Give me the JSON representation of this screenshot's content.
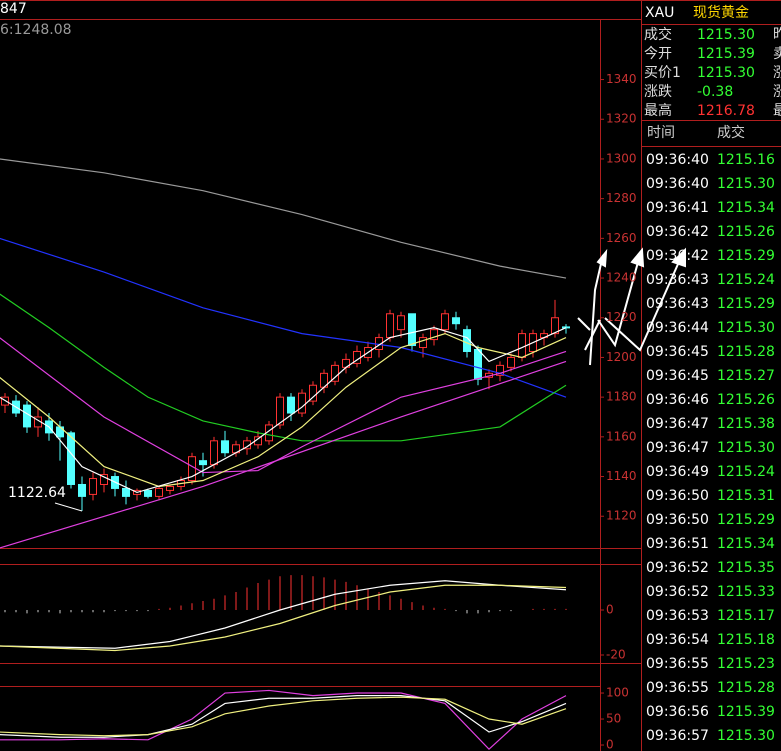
{
  "header": {
    "left_label": "847",
    "info": "6:1248.08"
  },
  "chart_data": [
    {
      "type": "candlestick",
      "ylim": [
        1104,
        1370
      ],
      "yticks": [
        1120,
        1140,
        1160,
        1180,
        1200,
        1220,
        1240,
        1260,
        1280,
        1300,
        1320,
        1340
      ],
      "up_color": "#ff3232",
      "down_color": "#54ffff",
      "low_label": "1122.64",
      "open": [
        1176,
        1178,
        1176,
        1165,
        1168,
        1165,
        1162,
        1136,
        1131,
        1136,
        1140,
        1134,
        1131,
        1133,
        1130,
        1133,
        1135,
        1138,
        1148,
        1146,
        1158,
        1152,
        1154,
        1156,
        1158,
        1166,
        1180,
        1172,
        1178,
        1185,
        1188,
        1195,
        1197,
        1200,
        1204,
        1210,
        1214,
        1222,
        1205,
        1209,
        1214,
        1220,
        1214,
        1204,
        1190,
        1191,
        1195,
        1200,
        1203,
        1210,
        1212,
        1215.39
      ],
      "high": [
        1182,
        1181,
        1178,
        1175,
        1172,
        1168,
        1163,
        1140,
        1142,
        1144,
        1142,
        1138,
        1134,
        1134,
        1135,
        1136,
        1140,
        1152,
        1152,
        1160,
        1163,
        1158,
        1160,
        1163,
        1168,
        1182,
        1182,
        1184,
        1188,
        1194,
        1198,
        1202,
        1206,
        1208,
        1212,
        1224,
        1223,
        1222,
        1212,
        1216,
        1224,
        1223,
        1216,
        1206,
        1194,
        1198,
        1202,
        1214,
        1214,
        1214,
        1229,
        1216.78
      ],
      "low": [
        1172,
        1170,
        1162,
        1160,
        1158,
        1148,
        1134,
        1122.64,
        1128,
        1132,
        1130,
        1126,
        1128,
        1129,
        1128,
        1131,
        1133,
        1136,
        1140,
        1144,
        1150,
        1150,
        1151,
        1154,
        1156,
        1164,
        1168,
        1170,
        1176,
        1182,
        1186,
        1192,
        1195,
        1198,
        1200,
        1208,
        1210,
        1203,
        1200,
        1206,
        1212,
        1214,
        1200,
        1186,
        1184,
        1188,
        1193,
        1198,
        1200,
        1206,
        1210,
        1212
      ],
      "close": [
        1180,
        1172,
        1165,
        1170,
        1162,
        1160,
        1136,
        1130,
        1139,
        1141,
        1134,
        1130,
        1133,
        1130,
        1134,
        1135,
        1138,
        1150,
        1146,
        1158,
        1152,
        1156,
        1158,
        1160,
        1166,
        1180,
        1172,
        1182,
        1186,
        1192,
        1196,
        1199,
        1203,
        1205,
        1210,
        1222,
        1221,
        1206,
        1210,
        1214,
        1222,
        1217,
        1203,
        1189,
        1192,
        1196,
        1200,
        1212,
        1212,
        1212,
        1220,
        1215.3
      ],
      "overlays": [
        {
          "color": "#9a9a9a",
          "x": [
            -0.5,
            9,
            18,
            27,
            36,
            45,
            51
          ],
          "values": [
            1300,
            1293,
            1284,
            1272,
            1258,
            1246,
            1240
          ]
        },
        {
          "color": "#2233ff",
          "x": [
            -0.5,
            9,
            18,
            27,
            36,
            45,
            51
          ],
          "values": [
            1260,
            1243,
            1225,
            1212,
            1205,
            1192,
            1180
          ]
        },
        {
          "color": "#22cc22",
          "x": [
            -0.5,
            4,
            9,
            13,
            18,
            23,
            27,
            36,
            45,
            51
          ],
          "values": [
            1232,
            1215,
            1195,
            1180,
            1168,
            1162,
            1158,
            1158,
            1165,
            1186
          ]
        },
        {
          "color": "#e040e0",
          "x": [
            -0.5,
            18,
            36,
            51
          ],
          "values": [
            1104,
            1135,
            1170,
            1198
          ]
        },
        {
          "color": "#e040e0",
          "x": [
            -0.5,
            9,
            18,
            23,
            27,
            36,
            45,
            51
          ],
          "values": [
            1210,
            1170,
            1142,
            1143,
            1155,
            1180,
            1192,
            1203
          ]
        },
        {
          "color": "#f0f080",
          "x": [
            -0.5,
            4,
            9,
            14,
            18,
            23,
            27,
            31,
            36,
            40,
            43,
            47,
            51
          ],
          "values": [
            1190,
            1170,
            1145,
            1135,
            1138,
            1150,
            1165,
            1185,
            1205,
            1212,
            1205,
            1200,
            1210
          ]
        },
        {
          "color": "#ffffff",
          "x": [
            -0.5,
            4,
            7,
            12,
            17,
            22,
            27,
            31,
            35,
            39,
            42,
            44,
            47,
            51
          ],
          "values": [
            1180,
            1165,
            1145,
            1132,
            1140,
            1155,
            1175,
            1195,
            1210,
            1215,
            1210,
            1198,
            1205,
            1215
          ]
        }
      ]
    },
    {
      "type": "bar",
      "ylim": [
        -24,
        20
      ],
      "yticks": [
        0,
        -20
      ],
      "up_color": "#ff3232",
      "down_color": "#cfcfcf",
      "values": [
        -1,
        -1,
        -1.5,
        -1,
        -1,
        -1.5,
        -1,
        -1,
        -1,
        -1,
        -0.5,
        -0.5,
        -0.5,
        -0.5,
        0.5,
        1,
        2,
        3,
        4,
        5,
        6.5,
        8,
        10,
        12,
        13.5,
        15,
        15.5,
        15.5,
        15,
        14.5,
        13.5,
        12.5,
        11,
        9.5,
        8,
        6.5,
        5,
        3.5,
        2,
        1,
        0.5,
        -0.5,
        -1.5,
        -1.5,
        -1,
        -0.5,
        -0.5,
        0,
        0.5,
        0.5,
        0.5,
        0.5
      ],
      "overlays": [
        {
          "color": "#ffffff",
          "x": [
            -0.5,
            10,
            15,
            20,
            25,
            30,
            35,
            40,
            45,
            51
          ],
          "values": [
            -16,
            -17,
            -14,
            -8,
            0,
            7,
            11,
            13,
            11,
            9
          ]
        },
        {
          "color": "#f0f080",
          "x": [
            -0.5,
            10,
            15,
            20,
            25,
            30,
            35,
            40,
            45,
            51
          ],
          "values": [
            -16,
            -18,
            -16,
            -12,
            -6,
            2,
            8,
            11,
            11,
            10
          ]
        }
      ]
    },
    {
      "type": "line",
      "ylim": [
        -11.5,
        152
      ],
      "yticks": [
        100,
        50,
        0
      ],
      "overlays": [
        {
          "color": "#e040e0",
          "x": [
            -0.5,
            5,
            9,
            13,
            17,
            20,
            24,
            28,
            32,
            36,
            40,
            44,
            47,
            51
          ],
          "values": [
            10,
            10,
            12,
            10,
            50,
            100,
            105,
            95,
            100,
            100,
            80,
            -8,
            50,
            95
          ]
        },
        {
          "color": "#ffffff",
          "x": [
            -0.5,
            5,
            9,
            13,
            17,
            20,
            24,
            28,
            32,
            36,
            40,
            44,
            47,
            51
          ],
          "values": [
            20,
            15,
            15,
            20,
            40,
            80,
            90,
            90,
            95,
            95,
            85,
            25,
            45,
            80
          ]
        },
        {
          "color": "#f0f080",
          "x": [
            -0.5,
            5,
            9,
            13,
            17,
            20,
            24,
            28,
            32,
            36,
            40,
            44,
            47,
            51
          ],
          "values": [
            25,
            20,
            18,
            20,
            35,
            60,
            75,
            85,
            90,
            92,
            88,
            50,
            40,
            70
          ]
        }
      ]
    }
  ],
  "quote": {
    "symbol": "XAU",
    "name": "现货黄金",
    "rows": [
      {
        "label": "成交",
        "value": "1215.30",
        "color": "#33ff33",
        "side": "昨"
      },
      {
        "label": "今开",
        "value": "1215.39",
        "color": "#33ff33",
        "side": "卖"
      },
      {
        "label": "买价1",
        "value": "1215.30",
        "color": "#33ff33",
        "side": "涨"
      },
      {
        "label": "涨跌",
        "value": "-0.38",
        "color": "#33ff33",
        "side": "涨"
      },
      {
        "label": "最高",
        "value": "1216.78",
        "color": "#ff3232",
        "side": "最"
      }
    ]
  },
  "ticks": {
    "headers": [
      "时间",
      "成交"
    ],
    "rows": [
      [
        "09:36:40",
        "1215.16"
      ],
      [
        "09:36:40",
        "1215.30"
      ],
      [
        "09:36:41",
        "1215.34"
      ],
      [
        "09:36:42",
        "1215.26"
      ],
      [
        "09:36:42",
        "1215.29"
      ],
      [
        "09:36:43",
        "1215.24"
      ],
      [
        "09:36:43",
        "1215.29"
      ],
      [
        "09:36:44",
        "1215.30"
      ],
      [
        "09:36:45",
        "1215.28"
      ],
      [
        "09:36:45",
        "1215.27"
      ],
      [
        "09:36:46",
        "1215.26"
      ],
      [
        "09:36:47",
        "1215.38"
      ],
      [
        "09:36:47",
        "1215.30"
      ],
      [
        "09:36:49",
        "1215.24"
      ],
      [
        "09:36:50",
        "1215.31"
      ],
      [
        "09:36:50",
        "1215.29"
      ],
      [
        "09:36:51",
        "1215.34"
      ],
      [
        "09:36:52",
        "1215.35"
      ],
      [
        "09:36:52",
        "1215.33"
      ],
      [
        "09:36:53",
        "1215.17"
      ],
      [
        "09:36:54",
        "1215.18"
      ],
      [
        "09:36:55",
        "1215.23"
      ],
      [
        "09:36:55",
        "1215.28"
      ],
      [
        "09:36:56",
        "1215.39"
      ],
      [
        "09:36:57",
        "1215.30"
      ]
    ]
  }
}
